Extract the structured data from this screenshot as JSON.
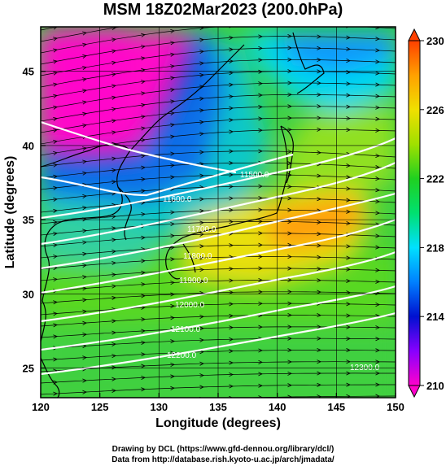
{
  "title": "MSM 18Z02Mar2023 (200.0hPa)",
  "x_axis": {
    "label": "Longitude (degrees)",
    "range": [
      120,
      150
    ],
    "ticks": [
      "120",
      "125",
      "130",
      "135",
      "140",
      "145",
      "150"
    ]
  },
  "y_axis": {
    "label": "Latitude  (degrees)",
    "range": [
      23,
      48
    ],
    "ticks": [
      "25",
      "30",
      "35",
      "40",
      "45"
    ]
  },
  "colorbar": {
    "ticks": [
      "210",
      "214",
      "218",
      "222",
      "226",
      "230"
    ],
    "range": [
      210,
      230
    ],
    "colors": [
      "#ff00cc",
      "#8800ff",
      "#0010d0",
      "#0080ff",
      "#00e0ff",
      "#00e070",
      "#20d020",
      "#a0e000",
      "#f0e000",
      "#ffa000",
      "#ff4000"
    ]
  },
  "contour_labels": [
    "12300.0",
    "12200.0",
    "12100.0",
    "12000.0",
    "11900.0",
    "11800.0",
    "11700.0",
    "11600.0",
    "11500.0"
  ],
  "credits": {
    "line1": "Drawing by DCL (https://www.gfd-dennou.org/library/dcl/)",
    "line2": "Data from http://database.rish.kyoto-u.ac.jp/arch/jmadata/"
  }
}
